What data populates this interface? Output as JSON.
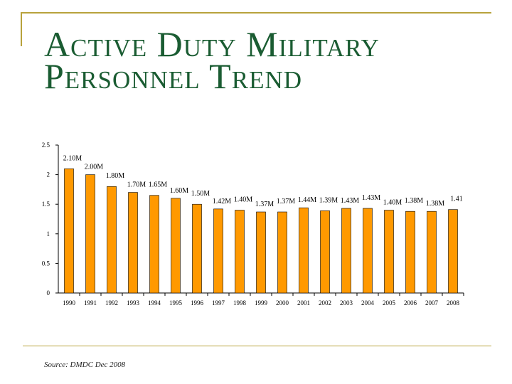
{
  "slide": {
    "title": "Active Duty Military Personnel Trend",
    "source": "Source: DMDC Dec 2008",
    "accent_color": "#b8a23c",
    "title_color": "#1a5c32"
  },
  "chart_data": {
    "type": "bar",
    "title": "",
    "xlabel": "",
    "ylabel": "",
    "ylim": [
      0,
      2.5
    ],
    "yticks": [
      "0",
      "0.5",
      "1",
      "1.5",
      "2",
      "2.5"
    ],
    "grid": false,
    "bar_color": "#ff9900",
    "categories": [
      "1990",
      "1991",
      "1992",
      "1993",
      "1994",
      "1995",
      "1996",
      "1997",
      "1998",
      "1999",
      "2000",
      "2001",
      "2002",
      "2003",
      "2004",
      "2005",
      "2006",
      "2007",
      "2008"
    ],
    "values": [
      2.1,
      2.0,
      1.8,
      1.7,
      1.65,
      1.6,
      1.5,
      1.42,
      1.4,
      1.37,
      1.37,
      1.44,
      1.39,
      1.43,
      1.43,
      1.4,
      1.38,
      1.38,
      1.41
    ],
    "data_labels": [
      "2.10M",
      "2.00M",
      "1.80M",
      "1.70M",
      "1.65M",
      "1.60M",
      "1.50M",
      "1.42M",
      "1.40M",
      "1.37M",
      "1.37M",
      "1.44M",
      "1.39M",
      "1.43M",
      "1.43M",
      "1.40M",
      "1.38M",
      "1.38M",
      "1.41"
    ]
  }
}
